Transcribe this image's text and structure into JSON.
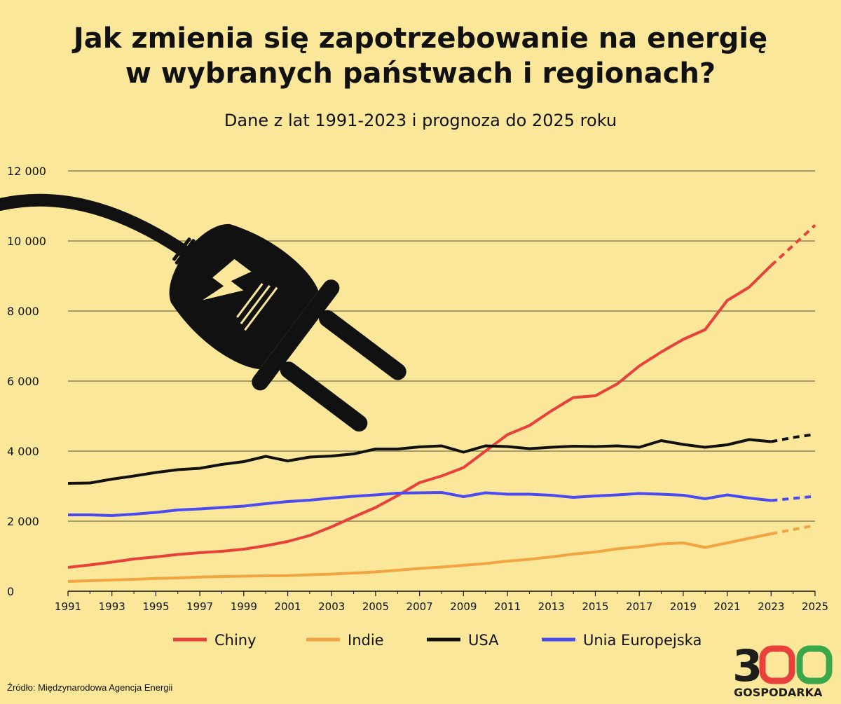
{
  "title_line1": "Jak zmienia się zapotrzebowanie na energię",
  "title_line2": "w wybranych państwach i regionach?",
  "subtitle": "Dane z lat 1991-2023 i prognoza do 2025 roku",
  "source": "Źródło: Międzynarodowa Agencja Energii",
  "logo": {
    "number": "300",
    "text": "GOSPODARKA",
    "icon": "plug-icon"
  },
  "colors": {
    "background": "#fbe79a",
    "Chiny": "#e8403a",
    "Indie": "#f2a443",
    "USA": "#111111",
    "Unia Europejska": "#4a4bf0"
  },
  "chart_data": {
    "type": "line",
    "ylim": [
      0,
      12000
    ],
    "yticks": [
      0,
      2000,
      4000,
      6000,
      8000,
      10000,
      12000
    ],
    "ytick_labels": [
      "0",
      "2 000",
      "4 000",
      "6 000",
      "8 000",
      "10 000",
      "12 000"
    ],
    "xlim": [
      1991,
      2025
    ],
    "xticks": [
      1991,
      1993,
      1995,
      1997,
      1999,
      2001,
      2003,
      2005,
      2007,
      2009,
      2011,
      2013,
      2015,
      2017,
      2019,
      2021,
      2023,
      2025
    ],
    "forecast_from": 2023,
    "grid": true,
    "legend_position": "bottom",
    "series": [
      {
        "name": "Chiny",
        "color": "#e8403a",
        "x": [
          1991,
          1992,
          1993,
          1994,
          1995,
          1996,
          1997,
          1998,
          1999,
          2000,
          2001,
          2002,
          2003,
          2004,
          2005,
          2006,
          2007,
          2008,
          2009,
          2010,
          2011,
          2012,
          2013,
          2014,
          2015,
          2016,
          2017,
          2018,
          2019,
          2020,
          2021,
          2022,
          2023,
          2024,
          2025
        ],
        "values": [
          680,
          750,
          830,
          920,
          980,
          1050,
          1100,
          1140,
          1200,
          1300,
          1420,
          1590,
          1840,
          2120,
          2390,
          2730,
          3100,
          3290,
          3530,
          4000,
          4470,
          4730,
          5150,
          5530,
          5580,
          5920,
          6430,
          6830,
          7190,
          7470,
          8300,
          8680,
          9300,
          9870,
          10450
        ]
      },
      {
        "name": "Indie",
        "color": "#f2a443",
        "x": [
          1991,
          1992,
          1993,
          1994,
          1995,
          1996,
          1997,
          1998,
          1999,
          2000,
          2001,
          2002,
          2003,
          2004,
          2005,
          2006,
          2007,
          2008,
          2009,
          2010,
          2011,
          2012,
          2013,
          2014,
          2015,
          2016,
          2017,
          2018,
          2019,
          2020,
          2021,
          2022,
          2023,
          2024,
          2025
        ],
        "values": [
          280,
          300,
          320,
          340,
          365,
          380,
          405,
          420,
          430,
          440,
          445,
          470,
          490,
          520,
          550,
          600,
          650,
          690,
          740,
          790,
          860,
          910,
          980,
          1060,
          1120,
          1210,
          1270,
          1350,
          1380,
          1250,
          1380,
          1510,
          1640,
          1760,
          1880
        ]
      },
      {
        "name": "USA",
        "color": "#111111",
        "x": [
          1991,
          1992,
          1993,
          1994,
          1995,
          1996,
          1997,
          1998,
          1999,
          2000,
          2001,
          2002,
          2003,
          2004,
          2005,
          2006,
          2007,
          2008,
          2009,
          2010,
          2011,
          2012,
          2013,
          2014,
          2015,
          2016,
          2017,
          2018,
          2019,
          2020,
          2021,
          2022,
          2023,
          2024,
          2025
        ],
        "values": [
          3080,
          3090,
          3200,
          3290,
          3390,
          3470,
          3510,
          3620,
          3700,
          3850,
          3720,
          3830,
          3860,
          3920,
          4060,
          4060,
          4120,
          4150,
          3970,
          4150,
          4130,
          4070,
          4110,
          4140,
          4130,
          4150,
          4110,
          4300,
          4190,
          4110,
          4180,
          4330,
          4270,
          4390,
          4480
        ]
      },
      {
        "name": "Unia Europejska",
        "color": "#4a4bf0",
        "x": [
          1991,
          1992,
          1993,
          1994,
          1995,
          1996,
          1997,
          1998,
          1999,
          2000,
          2001,
          2002,
          2003,
          2004,
          2005,
          2006,
          2007,
          2008,
          2009,
          2010,
          2011,
          2012,
          2013,
          2014,
          2015,
          2016,
          2017,
          2018,
          2019,
          2020,
          2021,
          2022,
          2023,
          2024,
          2025
        ],
        "values": [
          2180,
          2180,
          2160,
          2200,
          2250,
          2320,
          2350,
          2390,
          2430,
          2500,
          2560,
          2600,
          2660,
          2710,
          2750,
          2800,
          2810,
          2820,
          2700,
          2810,
          2770,
          2770,
          2740,
          2680,
          2720,
          2750,
          2790,
          2770,
          2740,
          2640,
          2750,
          2660,
          2590,
          2650,
          2710
        ]
      }
    ]
  }
}
